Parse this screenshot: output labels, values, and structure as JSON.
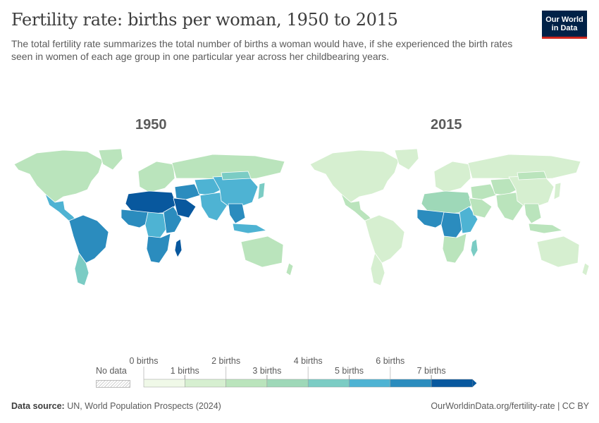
{
  "header": {
    "title": "Fertility rate: births per woman, 1950 to 2015",
    "subtitle": "The total fertility rate summarizes the total number of births a woman would have, if she experienced the birth rates seen in women of each age group in one particular year across her childbearing years.",
    "logo_line1": "Our World",
    "logo_line2": "in Data"
  },
  "maps": {
    "left_title": "1950",
    "right_title": "2015"
  },
  "legend": {
    "no_data_label": "No data",
    "bins": [
      {
        "label": "0 births",
        "color": "#f0f9e8"
      },
      {
        "label": "1 births",
        "color": "#d6efd0"
      },
      {
        "label": "2 births",
        "color": "#bae4bc"
      },
      {
        "label": "3 births",
        "color": "#9ed8b8"
      },
      {
        "label": "4 births",
        "color": "#7bccc4"
      },
      {
        "label": "5 births",
        "color": "#4eb3d3"
      },
      {
        "label": "6 births",
        "color": "#2b8cbe"
      },
      {
        "label": "7 births",
        "color": "#08589e"
      }
    ]
  },
  "footer": {
    "source_label": "Data source:",
    "source_text": "UN, World Population Prospects (2024)",
    "link": "OurWorldinData.org/fertility-rate | CC BY"
  },
  "region_colors": {
    "1950": {
      "north_america": "#bae4bc",
      "greenland": "#bae4bc",
      "mexico_central": "#4eb3d3",
      "south_america": "#2b8cbe",
      "southern_cone": "#7bccc4",
      "europe": "#bae4bc",
      "russia": "#bae4bc",
      "north_africa": "#08589e",
      "west_africa": "#2b8cbe",
      "central_africa": "#4eb3d3",
      "east_africa": "#2b8cbe",
      "southern_africa": "#2b8cbe",
      "madagascar": "#08589e",
      "middle_east": "#2b8cbe",
      "arabia": "#08589e",
      "central_asia": "#4eb3d3",
      "south_asia": "#4eb3d3",
      "china": "#4eb3d3",
      "mongolia": "#7bccc4",
      "japan": "#7bccc4",
      "southeast_asia": "#2b8cbe",
      "indonesia": "#4eb3d3",
      "australia": "#bae4bc",
      "new_zealand": "#bae4bc"
    },
    "2015": {
      "north_america": "#d6efd0",
      "greenland": "#d6efd0",
      "mexico_central": "#bae4bc",
      "south_america": "#d6efd0",
      "southern_cone": "#d6efd0",
      "europe": "#d6efd0",
      "russia": "#d6efd0",
      "north_africa": "#9ed8b8",
      "west_africa": "#2b8cbe",
      "central_africa": "#2b8cbe",
      "east_africa": "#4eb3d3",
      "southern_africa": "#bae4bc",
      "madagascar": "#7bccc4",
      "middle_east": "#bae4bc",
      "arabia": "#bae4bc",
      "central_asia": "#bae4bc",
      "south_asia": "#bae4bc",
      "china": "#d6efd0",
      "mongolia": "#bae4bc",
      "japan": "#d6efd0",
      "southeast_asia": "#bae4bc",
      "indonesia": "#bae4bc",
      "australia": "#d6efd0",
      "new_zealand": "#d6efd0"
    }
  }
}
